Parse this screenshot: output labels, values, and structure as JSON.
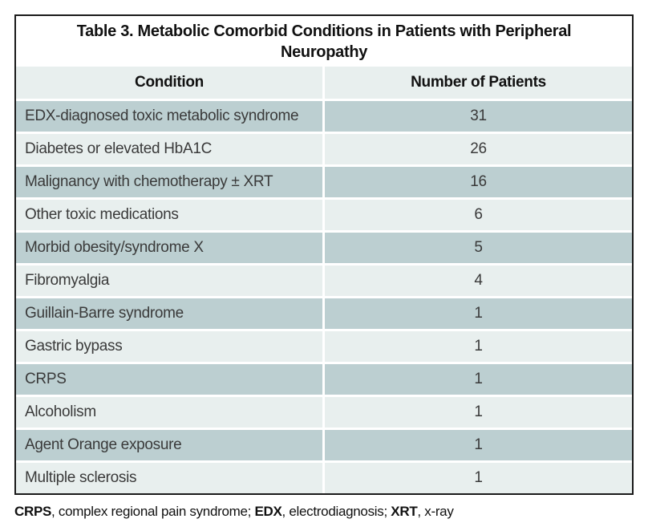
{
  "table": {
    "title_line1": "Table 3. Metabolic Comorbid Conditions in Patients with Peripheral",
    "title_line2": "Neuropathy",
    "columns": {
      "condition": "Condition",
      "count": "Number of Patients"
    },
    "rows": [
      {
        "condition": "EDX-diagnosed toxic metabolic syndrome",
        "count": "31"
      },
      {
        "condition": "Diabetes or elevated HbA1C",
        "count": "26"
      },
      {
        "condition": "Malignancy with chemotherapy ± XRT",
        "count": "16"
      },
      {
        "condition": "Other toxic medications",
        "count": "6"
      },
      {
        "condition": "Morbid obesity/syndrome X",
        "count": "5"
      },
      {
        "condition": "Fibromyalgia",
        "count": "4"
      },
      {
        "condition": "Guillain-Barre syndrome",
        "count": "1"
      },
      {
        "condition": "Gastric bypass",
        "count": "1"
      },
      {
        "condition": "CRPS",
        "count": "1"
      },
      {
        "condition": "Alcoholism",
        "count": "1"
      },
      {
        "condition": "Agent Orange exposure",
        "count": "1"
      },
      {
        "condition": "Multiple sclerosis",
        "count": "1"
      }
    ],
    "footnote": {
      "abbr1": "CRPS",
      "text1": ", complex regional pain syndrome; ",
      "abbr2": "EDX",
      "text2": ", electrodiagnosis; ",
      "abbr3": "XRT",
      "text3": ", x-ray"
    }
  },
  "colors": {
    "row_dark": "#bccfd1",
    "row_light": "#e8efee",
    "header_bg": "#e8efee",
    "border": "#1a1a1a"
  },
  "chart_data": {
    "type": "table",
    "title": "Table 3. Metabolic Comorbid Conditions in Patients with Peripheral Neuropathy",
    "columns": [
      "Condition",
      "Number of Patients"
    ],
    "categories": [
      "EDX-diagnosed toxic metabolic syndrome",
      "Diabetes or elevated HbA1C",
      "Malignancy with chemotherapy ± XRT",
      "Other toxic medications",
      "Morbid obesity/syndrome X",
      "Fibromyalgia",
      "Guillain-Barre syndrome",
      "Gastric bypass",
      "CRPS",
      "Alcoholism",
      "Agent Orange exposure",
      "Multiple sclerosis"
    ],
    "values": [
      31,
      26,
      16,
      6,
      5,
      4,
      1,
      1,
      1,
      1,
      1,
      1
    ]
  }
}
